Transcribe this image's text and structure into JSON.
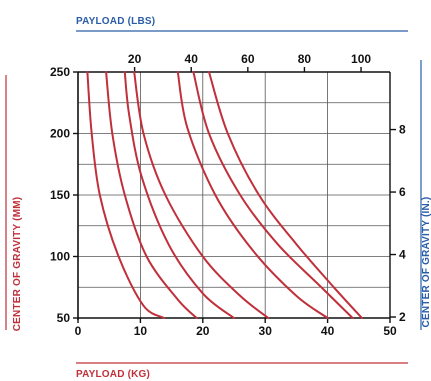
{
  "chart_data": {
    "type": "line",
    "top_axis_title": "PAYLOAD (LBS)",
    "bottom_axis_title": "PAYLOAD (KG)",
    "left_axis_title": "CENTER OF GRAVITY (MM)",
    "right_axis_title": "CENTER OF GRAVITY (IN.)",
    "x_kg": {
      "range": [
        0,
        50
      ],
      "ticks": [
        "0",
        "10",
        "20",
        "30",
        "40",
        "50"
      ]
    },
    "x_lbs": {
      "ticks": [
        20,
        40,
        60,
        80,
        100
      ],
      "labels": [
        "20",
        "40",
        "60",
        "80",
        "100"
      ]
    },
    "y_mm": {
      "range": [
        50,
        250
      ],
      "ticks": [
        "50",
        "100",
        "150",
        "200",
        "250"
      ]
    },
    "y_in": {
      "ticks": [
        2,
        4,
        6,
        8
      ],
      "labels": [
        "2",
        "4",
        "6",
        "8"
      ]
    },
    "colors": {
      "curve": "#c0303a",
      "top_axis": "#2a5da8",
      "grid": "#555555",
      "axis": "#111111",
      "left_title": "#c0303a",
      "right_title": "#2a5da8"
    },
    "series": [
      {
        "points": [
          [
            1.5,
            250
          ],
          [
            2.2,
            200
          ],
          [
            3.5,
            150
          ],
          [
            6.5,
            100
          ],
          [
            10.5,
            60
          ],
          [
            13.8,
            50
          ]
        ]
      },
      {
        "points": [
          [
            4.5,
            250
          ],
          [
            5.5,
            200
          ],
          [
            7.5,
            150
          ],
          [
            11,
            100
          ],
          [
            16,
            65
          ],
          [
            19,
            50
          ]
        ]
      },
      {
        "points": [
          [
            7.5,
            250
          ],
          [
            8.2,
            215
          ],
          [
            10.2,
            165
          ],
          [
            14.5,
            110
          ],
          [
            20,
            70
          ],
          [
            25,
            50
          ]
        ]
      },
      {
        "points": [
          [
            9,
            250
          ],
          [
            10.5,
            200
          ],
          [
            14,
            150
          ],
          [
            20,
            100
          ],
          [
            26,
            68
          ],
          [
            30.5,
            50
          ]
        ]
      },
      {
        "points": [
          [
            16,
            250
          ],
          [
            17.5,
            205
          ],
          [
            22,
            150
          ],
          [
            28,
            105
          ],
          [
            35,
            68
          ],
          [
            40,
            50
          ]
        ]
      },
      {
        "points": [
          [
            18.5,
            250
          ],
          [
            21,
            200
          ],
          [
            26,
            150
          ],
          [
            32,
            110
          ],
          [
            39,
            75
          ],
          [
            44,
            50
          ]
        ]
      },
      {
        "points": [
          [
            21,
            250
          ],
          [
            24,
            200
          ],
          [
            29,
            150
          ],
          [
            35,
            110
          ],
          [
            41,
            75
          ],
          [
            45.5,
            50
          ]
        ]
      }
    ]
  }
}
